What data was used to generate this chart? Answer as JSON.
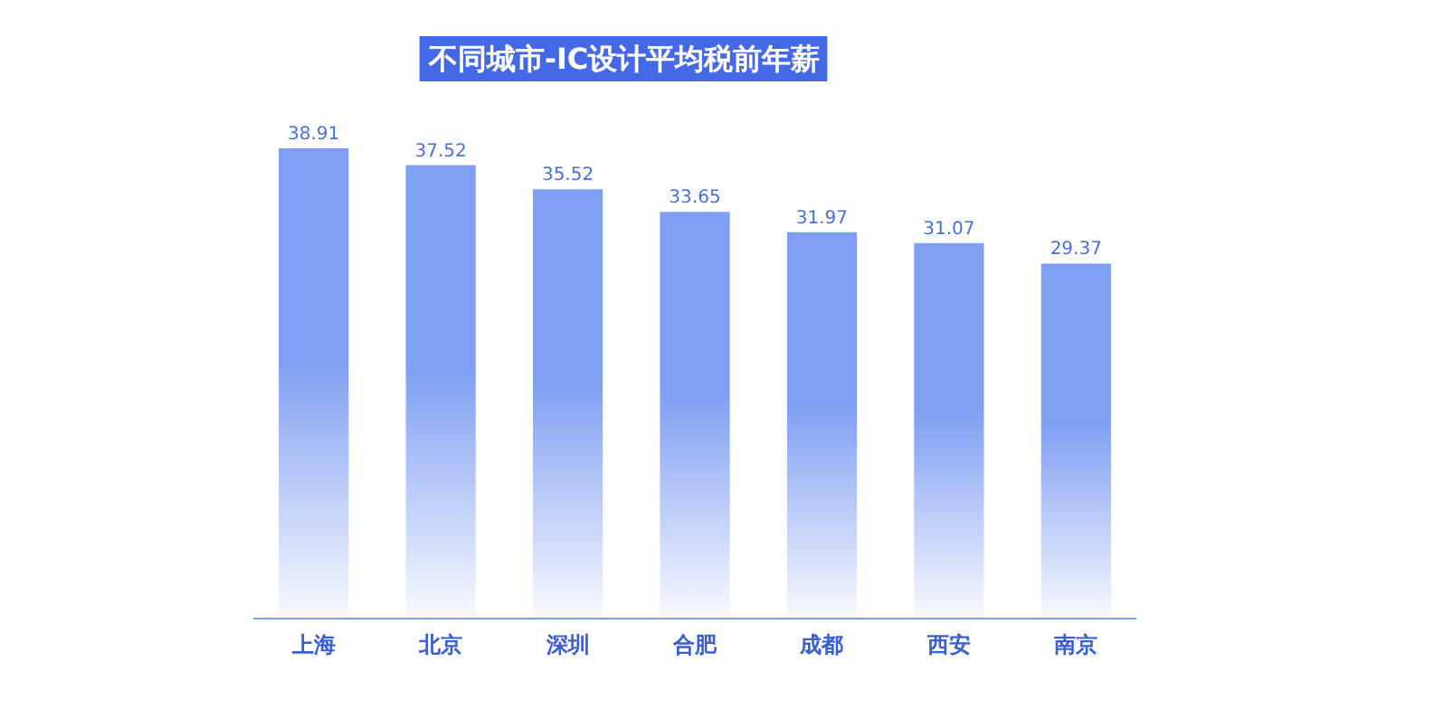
{
  "chart_data": {
    "type": "bar",
    "title": "不同城市-IC设计平均税前年薪",
    "categories": [
      "上海",
      "北京",
      "深圳",
      "合肥",
      "成都",
      "西安",
      "南京"
    ],
    "values": [
      38.91,
      37.52,
      35.52,
      33.65,
      31.97,
      31.07,
      29.37
    ],
    "color": "#7f9ff2",
    "tick_labels": "x",
    "data_labels": true
  }
}
